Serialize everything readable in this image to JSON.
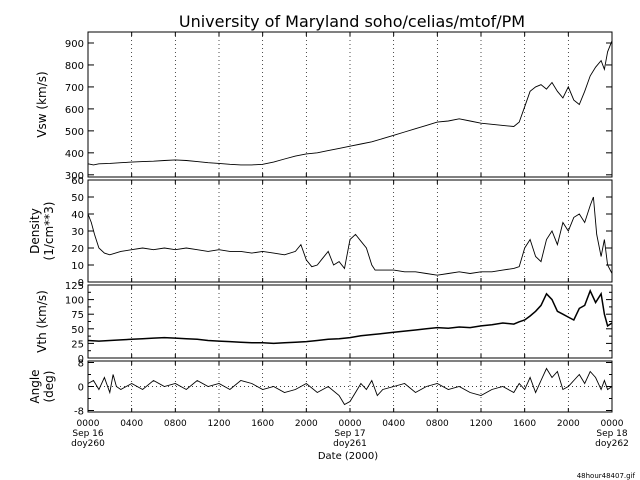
{
  "chart_data": {
    "type": "line",
    "title": "University of Maryland  soho/celias/mtof/PM",
    "xlabel": "Date (2000)",
    "footer": "48hour48407.gif",
    "xlim": [
      0,
      48
    ],
    "x_ticks": [
      {
        "x": 0,
        "lines": [
          "0000",
          "Sep 16",
          "doy260"
        ]
      },
      {
        "x": 4,
        "lines": [
          "0400"
        ]
      },
      {
        "x": 8,
        "lines": [
          "0800"
        ]
      },
      {
        "x": 12,
        "lines": [
          "1200"
        ]
      },
      {
        "x": 16,
        "lines": [
          "1600"
        ]
      },
      {
        "x": 20,
        "lines": [
          "2000"
        ]
      },
      {
        "x": 24,
        "lines": [
          "0000",
          "Sep 17",
          "doy261"
        ]
      },
      {
        "x": 28,
        "lines": [
          "0400"
        ]
      },
      {
        "x": 32,
        "lines": [
          "0800"
        ]
      },
      {
        "x": 36,
        "lines": [
          "1200"
        ]
      },
      {
        "x": 40,
        "lines": [
          "1600"
        ]
      },
      {
        "x": 44,
        "lines": [
          "2000"
        ]
      },
      {
        "x": 48,
        "lines": [
          "0000",
          "Sep 18",
          "doy262"
        ]
      }
    ],
    "panels": [
      {
        "name": "vsw",
        "ylabel": [
          "Vsw (km/s)"
        ],
        "ylim": [
          290,
          950
        ],
        "yticks": [
          300,
          400,
          500,
          600,
          700,
          800,
          900
        ],
        "ytick_labels": [
          "300",
          "400",
          "500",
          "600",
          "700",
          "800",
          "900"
        ],
        "zero_line": false,
        "points": [
          [
            0,
            350
          ],
          [
            0.5,
            345
          ],
          [
            1,
            350
          ],
          [
            2,
            352
          ],
          [
            3,
            355
          ],
          [
            4,
            358
          ],
          [
            5,
            360
          ],
          [
            6,
            362
          ],
          [
            7,
            365
          ],
          [
            8,
            368
          ],
          [
            9,
            365
          ],
          [
            10,
            360
          ],
          [
            11,
            355
          ],
          [
            12,
            352
          ],
          [
            13,
            348
          ],
          [
            14,
            345
          ],
          [
            15,
            345
          ],
          [
            16,
            348
          ],
          [
            17,
            358
          ],
          [
            18,
            372
          ],
          [
            19,
            385
          ],
          [
            20,
            395
          ],
          [
            21,
            400
          ],
          [
            22,
            410
          ],
          [
            23,
            420
          ],
          [
            24,
            430
          ],
          [
            25,
            440
          ],
          [
            26,
            450
          ],
          [
            27,
            465
          ],
          [
            28,
            480
          ],
          [
            29,
            495
          ],
          [
            30,
            510
          ],
          [
            31,
            525
          ],
          [
            32,
            540
          ],
          [
            33,
            545
          ],
          [
            34,
            555
          ],
          [
            35,
            545
          ],
          [
            36,
            535
          ],
          [
            37,
            530
          ],
          [
            38,
            525
          ],
          [
            39,
            520
          ],
          [
            39.5,
            540
          ],
          [
            40,
            610
          ],
          [
            40.5,
            680
          ],
          [
            41,
            700
          ],
          [
            41.5,
            710
          ],
          [
            42,
            690
          ],
          [
            42.5,
            720
          ],
          [
            43,
            680
          ],
          [
            43.5,
            650
          ],
          [
            44,
            700
          ],
          [
            44.5,
            640
          ],
          [
            45,
            620
          ],
          [
            45.5,
            680
          ],
          [
            46,
            750
          ],
          [
            46.5,
            790
          ],
          [
            47,
            820
          ],
          [
            47.3,
            780
          ],
          [
            47.6,
            860
          ],
          [
            48,
            910
          ]
        ]
      },
      {
        "name": "density",
        "ylabel": [
          "Density",
          "(1/cm**3)"
        ],
        "ylim": [
          0,
          60
        ],
        "yticks": [
          0,
          10,
          20,
          30,
          40,
          50,
          60
        ],
        "ytick_labels": [
          "0",
          "10",
          "20",
          "30",
          "40",
          "50",
          "60"
        ],
        "zero_line": false,
        "points": [
          [
            0,
            40
          ],
          [
            0.3,
            35
          ],
          [
            0.6,
            28
          ],
          [
            1,
            20
          ],
          [
            1.5,
            17
          ],
          [
            2,
            16
          ],
          [
            3,
            18
          ],
          [
            4,
            19
          ],
          [
            5,
            20
          ],
          [
            6,
            19
          ],
          [
            7,
            20
          ],
          [
            8,
            19
          ],
          [
            9,
            20
          ],
          [
            10,
            19
          ],
          [
            11,
            18
          ],
          [
            12,
            19
          ],
          [
            13,
            18
          ],
          [
            14,
            18
          ],
          [
            15,
            17
          ],
          [
            16,
            18
          ],
          [
            17,
            17
          ],
          [
            18,
            16
          ],
          [
            19,
            18
          ],
          [
            19.5,
            22
          ],
          [
            20,
            13
          ],
          [
            20.5,
            9
          ],
          [
            21,
            10
          ],
          [
            21.5,
            14
          ],
          [
            22,
            18
          ],
          [
            22.5,
            10
          ],
          [
            23,
            12
          ],
          [
            23.5,
            8
          ],
          [
            24,
            25
          ],
          [
            24.5,
            28
          ],
          [
            25,
            24
          ],
          [
            25.5,
            20
          ],
          [
            26,
            10
          ],
          [
            26.3,
            7
          ],
          [
            27,
            7
          ],
          [
            28,
            7
          ],
          [
            29,
            6
          ],
          [
            30,
            6
          ],
          [
            31,
            5
          ],
          [
            32,
            4
          ],
          [
            33,
            5
          ],
          [
            34,
            6
          ],
          [
            35,
            5
          ],
          [
            36,
            6
          ],
          [
            37,
            6
          ],
          [
            38,
            7
          ],
          [
            39,
            8
          ],
          [
            39.5,
            9
          ],
          [
            40,
            20
          ],
          [
            40.5,
            25
          ],
          [
            41,
            15
          ],
          [
            41.5,
            12
          ],
          [
            42,
            25
          ],
          [
            42.5,
            30
          ],
          [
            43,
            22
          ],
          [
            43.5,
            35
          ],
          [
            44,
            30
          ],
          [
            44.5,
            38
          ],
          [
            45,
            40
          ],
          [
            45.5,
            35
          ],
          [
            46,
            45
          ],
          [
            46.3,
            50
          ],
          [
            46.6,
            28
          ],
          [
            47,
            15
          ],
          [
            47.3,
            25
          ],
          [
            47.6,
            10
          ],
          [
            48,
            5
          ]
        ]
      },
      {
        "name": "vth",
        "ylabel": [
          "Vth (km/s)"
        ],
        "ylim": [
          0,
          125
        ],
        "yticks": [
          0,
          25,
          50,
          75,
          100,
          125
        ],
        "ytick_labels": [
          "0",
          "25",
          "50",
          "75",
          "100",
          "125"
        ],
        "minor_yticks": [
          12.5,
          37.5,
          62.5,
          87.5,
          112.5
        ],
        "minor_ytick_labels": [
          "",
          "",
          "",
          "",
          ""
        ],
        "zero_line": false,
        "points": [
          [
            0,
            30
          ],
          [
            1,
            29
          ],
          [
            2,
            30
          ],
          [
            3,
            31
          ],
          [
            4,
            32
          ],
          [
            5,
            33
          ],
          [
            6,
            34
          ],
          [
            7,
            35
          ],
          [
            8,
            34
          ],
          [
            9,
            33
          ],
          [
            10,
            32
          ],
          [
            11,
            30
          ],
          [
            12,
            29
          ],
          [
            13,
            28
          ],
          [
            14,
            27
          ],
          [
            15,
            26
          ],
          [
            16,
            26
          ],
          [
            17,
            25
          ],
          [
            18,
            26
          ],
          [
            19,
            27
          ],
          [
            20,
            28
          ],
          [
            21,
            30
          ],
          [
            22,
            32
          ],
          [
            23,
            33
          ],
          [
            24,
            35
          ],
          [
            25,
            38
          ],
          [
            26,
            40
          ],
          [
            27,
            42
          ],
          [
            28,
            44
          ],
          [
            29,
            46
          ],
          [
            30,
            48
          ],
          [
            31,
            50
          ],
          [
            32,
            52
          ],
          [
            33,
            51
          ],
          [
            34,
            53
          ],
          [
            35,
            52
          ],
          [
            36,
            55
          ],
          [
            37,
            57
          ],
          [
            38,
            60
          ],
          [
            39,
            58
          ],
          [
            39.5,
            62
          ],
          [
            40,
            65
          ],
          [
            40.5,
            72
          ],
          [
            41,
            80
          ],
          [
            41.5,
            90
          ],
          [
            42,
            110
          ],
          [
            42.5,
            100
          ],
          [
            43,
            80
          ],
          [
            43.5,
            75
          ],
          [
            44,
            70
          ],
          [
            44.5,
            65
          ],
          [
            45,
            85
          ],
          [
            45.5,
            90
          ],
          [
            46,
            115
          ],
          [
            46.5,
            95
          ],
          [
            47,
            110
          ],
          [
            47.3,
            75
          ],
          [
            47.6,
            55
          ],
          [
            48,
            60
          ]
        ]
      },
      {
        "name": "angle",
        "ylabel": [
          "Angle",
          "(deg)"
        ],
        "ylim": [
          -8.5,
          8.5
        ],
        "yticks": [
          -8,
          0,
          8
        ],
        "ytick_labels": [
          "-8",
          "0",
          "8"
        ],
        "minor_yticks": [
          -4,
          4
        ],
        "minor_ytick_labels": [
          "",
          ""
        ],
        "zero_line": true,
        "points": [
          [
            0,
            1
          ],
          [
            0.5,
            2
          ],
          [
            1,
            -1
          ],
          [
            1.5,
            3
          ],
          [
            2,
            -2
          ],
          [
            2.3,
            4
          ],
          [
            2.6,
            0
          ],
          [
            3,
            -1
          ],
          [
            4,
            1
          ],
          [
            5,
            -1
          ],
          [
            6,
            2
          ],
          [
            7,
            0
          ],
          [
            8,
            1
          ],
          [
            9,
            -1
          ],
          [
            10,
            2
          ],
          [
            11,
            0
          ],
          [
            12,
            1
          ],
          [
            13,
            -1
          ],
          [
            14,
            2
          ],
          [
            15,
            1
          ],
          [
            16,
            -1
          ],
          [
            17,
            0
          ],
          [
            18,
            -2
          ],
          [
            19,
            -1
          ],
          [
            20,
            1
          ],
          [
            21,
            -2
          ],
          [
            22,
            0
          ],
          [
            23,
            -3
          ],
          [
            23.5,
            -6
          ],
          [
            24,
            -5
          ],
          [
            24.5,
            -2
          ],
          [
            25,
            1
          ],
          [
            25.5,
            -1
          ],
          [
            26,
            2
          ],
          [
            26.5,
            -3
          ],
          [
            27,
            -1
          ],
          [
            28,
            0
          ],
          [
            29,
            1
          ],
          [
            30,
            -2
          ],
          [
            31,
            0
          ],
          [
            32,
            1
          ],
          [
            33,
            -1
          ],
          [
            34,
            0
          ],
          [
            35,
            -2
          ],
          [
            36,
            -3
          ],
          [
            37,
            -1
          ],
          [
            38,
            0
          ],
          [
            39,
            -2
          ],
          [
            39.5,
            1
          ],
          [
            40,
            -1
          ],
          [
            40.5,
            3
          ],
          [
            41,
            -2
          ],
          [
            41.5,
            2
          ],
          [
            42,
            6
          ],
          [
            42.5,
            3
          ],
          [
            43,
            5
          ],
          [
            43.5,
            -1
          ],
          [
            44,
            0
          ],
          [
            44.5,
            2
          ],
          [
            45,
            4
          ],
          [
            45.5,
            1
          ],
          [
            46,
            5
          ],
          [
            46.5,
            3
          ],
          [
            47,
            -1
          ],
          [
            47.3,
            2
          ],
          [
            47.6,
            -1
          ],
          [
            48,
            0
          ]
        ]
      }
    ]
  }
}
